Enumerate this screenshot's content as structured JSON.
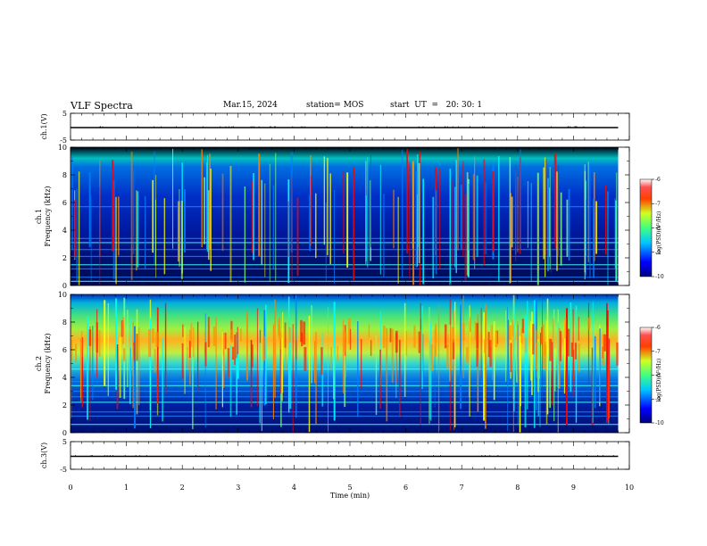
{
  "header": {
    "title": "VLF Spectra",
    "date": "Mar.15, 2024",
    "station": "station= MOS",
    "start": "start  UT  =   20: 30: 1"
  },
  "colors": {
    "jet": [
      "#000080",
      "#0000ff",
      "#0080ff",
      "#00ffff",
      "#80ff80",
      "#ffff00",
      "#ff8000",
      "#ff0000",
      "#800000"
    ],
    "background_dark": "#000030"
  },
  "chart_data": [
    {
      "type": "line",
      "ylabel": "ch.1(V)",
      "ylim": [
        -5,
        5
      ],
      "yticks": [
        "5",
        "-5"
      ],
      "x": [
        0,
        10
      ],
      "values": [
        0,
        0
      ]
    },
    {
      "type": "heatmap",
      "ylabel": "ch.1\nFrequency (kHz)",
      "ylim": [
        0,
        10
      ],
      "yticks": [
        "10",
        "8",
        "6",
        "4",
        "2",
        "0"
      ],
      "xlim": [
        0,
        9.8
      ],
      "colorbar": {
        "label": "log(PSD)(V²/Hz)",
        "ticks": [
          "-6",
          "-7",
          "-8",
          "-9",
          "-10"
        ],
        "range": [
          -10,
          -6
        ]
      },
      "bands_khz": [
        0.3,
        0.6,
        1.2,
        1.5,
        2.1,
        2.6,
        3.1,
        3.4,
        5.7
      ]
    },
    {
      "type": "heatmap",
      "ylabel": "ch.2\nFrequency (kHz)",
      "ylim": [
        0,
        10
      ],
      "yticks": [
        "10",
        "8",
        "6",
        "4",
        "2",
        "0"
      ],
      "xlim": [
        0,
        9.8
      ],
      "colorbar": {
        "label": "log(PSD)(V²/Hz)",
        "ticks": [
          "-6",
          "-7",
          "-8",
          "-9",
          "-10"
        ],
        "range": [
          -10,
          -6
        ]
      },
      "bands_khz": [
        0.6,
        1.2,
        1.5,
        2.2,
        2.6,
        3.0,
        3.4,
        3.7,
        4.2,
        4.6
      ]
    },
    {
      "type": "line",
      "ylabel": "ch.3(V)",
      "ylim": [
        -5,
        5
      ],
      "yticks": [
        "5",
        "-5"
      ],
      "x": [
        0,
        10
      ],
      "values": [
        0,
        0
      ]
    }
  ],
  "xaxis": {
    "label": "Time  (min)",
    "ticks": [
      "0",
      "1",
      "2",
      "3",
      "4",
      "5",
      "6",
      "7",
      "8",
      "9",
      "10"
    ],
    "range": [
      0,
      10
    ]
  }
}
